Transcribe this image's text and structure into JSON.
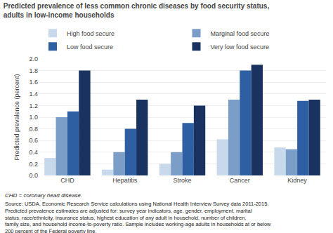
{
  "chart_data": {
    "type": "bar",
    "title": "Predicted prevalence of less common chronic diseases by food security status,\nadults in low-income households",
    "ylabel": "Predicted prevalence (percent)",
    "categories": [
      "CHD",
      "Hepatitis",
      "Stroke",
      "Cancer",
      "Kidney"
    ],
    "series": [
      {
        "name": "High food secure",
        "color": "#c8d9ec",
        "values": [
          0.3,
          0.1,
          0.2,
          0.62,
          0.48
        ]
      },
      {
        "name": "Marginal food secure",
        "color": "#7a9ec8",
        "values": [
          1.0,
          0.4,
          0.4,
          1.3,
          0.45
        ]
      },
      {
        "name": "Low food secure",
        "color": "#2e5fa3",
        "values": [
          1.1,
          0.8,
          0.9,
          1.8,
          1.28
        ]
      },
      {
        "name": "Very low food secure",
        "color": "#1a3260",
        "values": [
          1.8,
          1.3,
          1.2,
          1.9,
          1.3
        ]
      }
    ],
    "ylim": [
      0.0,
      2.0
    ],
    "yticks": [
      {
        "value": 0,
        "label": "0.0"
      },
      0.2,
      0.4,
      0.6,
      0.8,
      {
        "value": 1,
        "label": "1.0"
      },
      1.2,
      1.4,
      1.6,
      1.8,
      {
        "value": 2,
        "label": "2.0"
      }
    ],
    "grid": true,
    "legend": "top",
    "annotations": [
      "CHD = coronary heart disease.",
      "Source: USDA, Economic Research Service calculations using National Health Interview Survey data 2011-2015. Predicted prevalence estimates are adjusted for: survey year indicators, age, gender, employment, marital status, race/ethnicity, insurance status, highest education of any adult in household, number of children, family size, and household income-to-poverty ratio. Sample includes working-age adults in households at or below 200 percent of the Federal poverty line."
    ]
  }
}
